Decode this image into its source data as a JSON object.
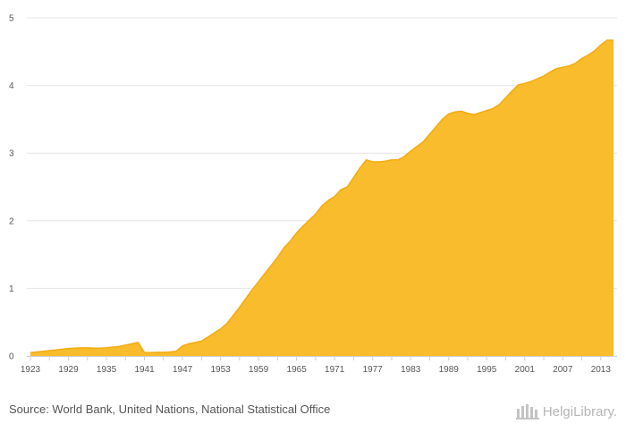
{
  "chart_data": {
    "type": "area",
    "title": "",
    "xlabel": "",
    "ylabel": "",
    "color": "#f8bc2c",
    "stroke_color": "#f2ac10",
    "xlim": [
      1923,
      2015
    ],
    "ylim": [
      0,
      5
    ],
    "yticks": [
      0,
      1,
      2,
      3,
      4,
      5
    ],
    "xticks": [
      1923,
      1929,
      1935,
      1941,
      1947,
      1953,
      1959,
      1965,
      1971,
      1977,
      1983,
      1989,
      1995,
      2001,
      2007,
      2013
    ],
    "x": [
      1923,
      1924,
      1925,
      1926,
      1927,
      1928,
      1929,
      1930,
      1931,
      1932,
      1933,
      1934,
      1935,
      1936,
      1937,
      1938,
      1939,
      1940,
      1941,
      1942,
      1943,
      1944,
      1945,
      1946,
      1947,
      1948,
      1949,
      1950,
      1951,
      1952,
      1953,
      1954,
      1955,
      1956,
      1957,
      1958,
      1959,
      1960,
      1961,
      1962,
      1963,
      1964,
      1965,
      1966,
      1967,
      1968,
      1969,
      1970,
      1971,
      1972,
      1973,
      1974,
      1975,
      1976,
      1977,
      1978,
      1979,
      1980,
      1981,
      1982,
      1983,
      1984,
      1985,
      1986,
      1987,
      1988,
      1989,
      1990,
      1991,
      1992,
      1993,
      1994,
      1995,
      1996,
      1997,
      1998,
      1999,
      2000,
      2001,
      2002,
      2003,
      2004,
      2005,
      2006,
      2007,
      2008,
      2009,
      2010,
      2011,
      2012,
      2013,
      2014,
      2015
    ],
    "values": [
      0.05,
      0.06,
      0.07,
      0.08,
      0.09,
      0.1,
      0.11,
      0.115,
      0.12,
      0.12,
      0.115,
      0.115,
      0.12,
      0.13,
      0.14,
      0.16,
      0.18,
      0.2,
      0.05,
      0.05,
      0.055,
      0.055,
      0.06,
      0.07,
      0.15,
      0.18,
      0.2,
      0.22,
      0.28,
      0.34,
      0.4,
      0.48,
      0.6,
      0.72,
      0.85,
      0.98,
      1.1,
      1.22,
      1.34,
      1.46,
      1.6,
      1.7,
      1.82,
      1.92,
      2.01,
      2.1,
      2.22,
      2.3,
      2.36,
      2.46,
      2.5,
      2.64,
      2.78,
      2.9,
      2.87,
      2.87,
      2.88,
      2.9,
      2.9,
      2.95,
      3.03,
      3.1,
      3.17,
      3.28,
      3.39,
      3.5,
      3.58,
      3.61,
      3.62,
      3.59,
      3.57,
      3.6,
      3.63,
      3.66,
      3.72,
      3.82,
      3.92,
      4.01,
      4.03,
      4.06,
      4.1,
      4.14,
      4.2,
      4.25,
      4.27,
      4.29,
      4.33,
      4.4,
      4.45,
      4.51,
      4.6,
      4.67,
      4.67
    ]
  },
  "footer": {
    "source": "Source: World Bank, United Nations, National Statistical Office",
    "brand": "HelgiLibrary."
  }
}
